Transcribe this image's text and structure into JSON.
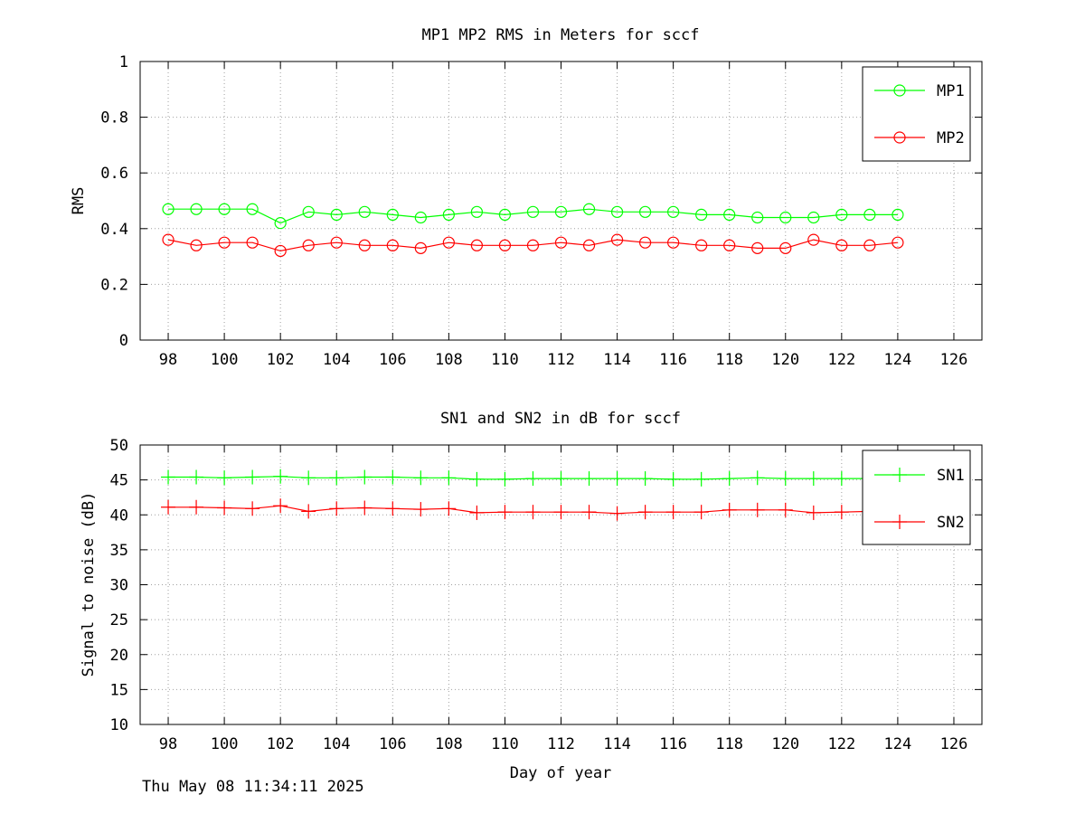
{
  "timestamp": "Thu May 08 11:34:11 2025",
  "colors": {
    "mp1": "#00ff00",
    "mp2": "#ff0000",
    "sn1": "#00ff00",
    "sn2": "#ff0000",
    "axis": "#000000",
    "grid": "#a0a0a0"
  },
  "chart_data": [
    {
      "type": "line",
      "title": "MP1 MP2 RMS in Meters for sccf",
      "xlabel": "",
      "ylabel": "RMS",
      "xlim": [
        97,
        127
      ],
      "ylim": [
        0,
        1
      ],
      "xticks": [
        98,
        100,
        102,
        104,
        106,
        108,
        110,
        112,
        114,
        116,
        118,
        120,
        122,
        124,
        126
      ],
      "yticks": [
        0,
        0.2,
        0.4,
        0.6,
        0.8,
        1
      ],
      "ytick_labels": [
        "0",
        "0.2",
        "0.4",
        "0.6",
        "0.8",
        "1"
      ],
      "grid": true,
      "legend_position": "top-right",
      "marker": "circle",
      "x": [
        98,
        99,
        100,
        101,
        102,
        103,
        104,
        105,
        106,
        107,
        108,
        109,
        110,
        111,
        112,
        113,
        114,
        115,
        116,
        117,
        118,
        119,
        120,
        121,
        122,
        123,
        124
      ],
      "series": [
        {
          "name": "MP1",
          "color": "#00ff00",
          "values": [
            0.47,
            0.47,
            0.47,
            0.47,
            0.42,
            0.46,
            0.45,
            0.46,
            0.45,
            0.44,
            0.45,
            0.46,
            0.45,
            0.46,
            0.46,
            0.47,
            0.46,
            0.46,
            0.46,
            0.45,
            0.45,
            0.44,
            0.44,
            0.44,
            0.45,
            0.45,
            0.45
          ]
        },
        {
          "name": "MP2",
          "color": "#ff0000",
          "values": [
            0.36,
            0.34,
            0.35,
            0.35,
            0.32,
            0.34,
            0.35,
            0.34,
            0.34,
            0.33,
            0.35,
            0.34,
            0.34,
            0.34,
            0.35,
            0.34,
            0.36,
            0.35,
            0.35,
            0.34,
            0.34,
            0.33,
            0.33,
            0.36,
            0.34,
            0.34,
            0.35
          ]
        }
      ]
    },
    {
      "type": "line",
      "title": "SN1 and SN2 in dB for sccf",
      "xlabel": "Day of year",
      "ylabel": "Signal to noise (dB)",
      "xlim": [
        97,
        127
      ],
      "ylim": [
        10,
        50
      ],
      "xticks": [
        98,
        100,
        102,
        104,
        106,
        108,
        110,
        112,
        114,
        116,
        118,
        120,
        122,
        124,
        126
      ],
      "yticks": [
        10,
        15,
        20,
        25,
        30,
        35,
        40,
        45,
        50
      ],
      "ytick_labels": [
        "10",
        "15",
        "20",
        "25",
        "30",
        "35",
        "40",
        "45",
        "50"
      ],
      "grid": true,
      "legend_position": "top-right",
      "marker": "plus",
      "x": [
        98,
        99,
        100,
        101,
        102,
        103,
        104,
        105,
        106,
        107,
        108,
        109,
        110,
        111,
        112,
        113,
        114,
        115,
        116,
        117,
        118,
        119,
        120,
        121,
        122,
        123,
        124
      ],
      "series": [
        {
          "name": "SN1",
          "color": "#00ff00",
          "values": [
            45.4,
            45.4,
            45.3,
            45.4,
            45.5,
            45.3,
            45.3,
            45.4,
            45.4,
            45.3,
            45.3,
            45.1,
            45.1,
            45.2,
            45.2,
            45.2,
            45.2,
            45.2,
            45.1,
            45.1,
            45.2,
            45.3,
            45.2,
            45.2,
            45.2,
            45.2,
            45.2
          ]
        },
        {
          "name": "SN2",
          "color": "#ff0000",
          "values": [
            41.1,
            41.1,
            41.0,
            40.9,
            41.3,
            40.5,
            40.9,
            41.0,
            40.9,
            40.8,
            40.9,
            40.3,
            40.4,
            40.4,
            40.4,
            40.4,
            40.2,
            40.4,
            40.4,
            40.4,
            40.7,
            40.7,
            40.7,
            40.3,
            40.4,
            40.5,
            40.5
          ]
        }
      ]
    }
  ]
}
